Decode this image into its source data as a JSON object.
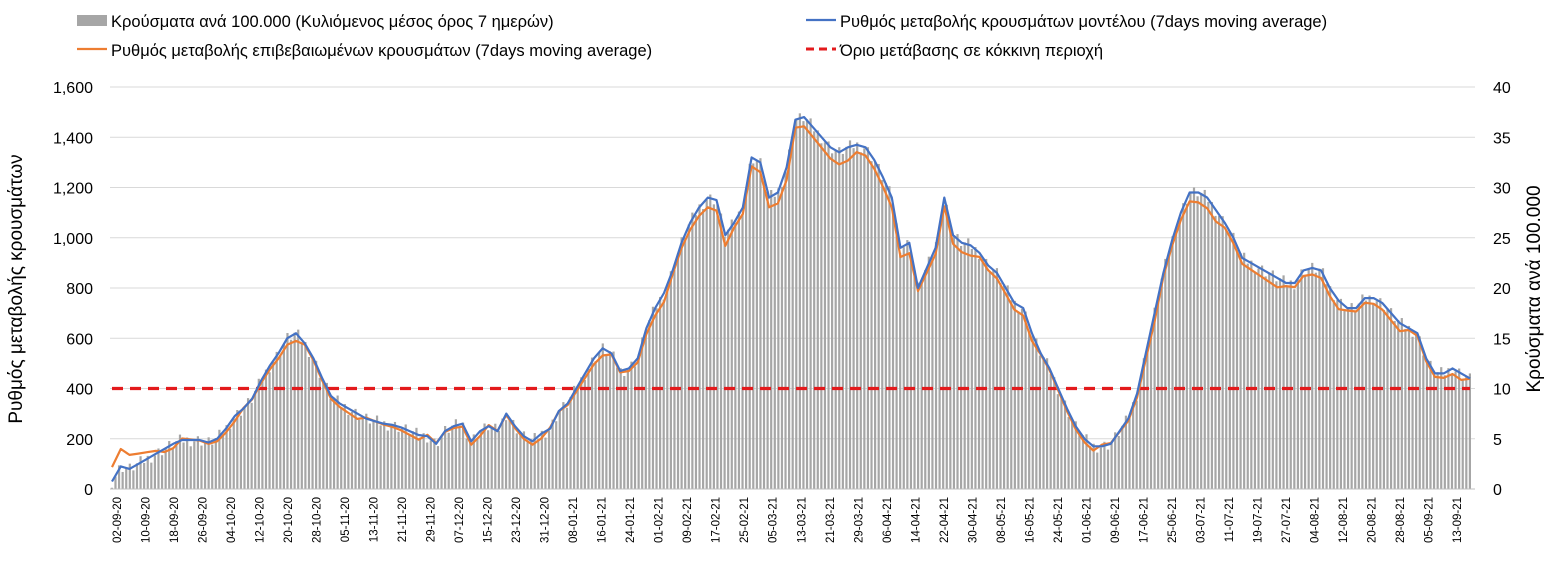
{
  "chart_data": {
    "type": "line",
    "legend": {
      "bars": "Κρούσματα ανά 100.000 (Κυλιόμενος μέσος όρος 7 ημερών)",
      "model": "Ρυθμός μεταβολής κρουσμάτων μοντέλου (7days moving average)",
      "confirmed": "Ρυθμός μεταβολής επιβεβαιωμένων κρουσμάτων (7days moving average)",
      "threshold": "Όριο μετάβασης σε κόκκινη περιοχή",
      "placement": "top"
    },
    "ylabel_left": "Ρυθμός μεταβολής κρουσμάτων",
    "ylabel_right": "Κρούσματα ανά 100.000",
    "ylim_left": [
      0,
      1600
    ],
    "ylim_right": [
      0,
      40
    ],
    "yticks_left": [
      "0",
      "200",
      "400",
      "600",
      "800",
      "1,000",
      "1,200",
      "1,400",
      "1,600"
    ],
    "yticks_right": [
      "0",
      "5",
      "10",
      "15",
      "20",
      "25",
      "30",
      "35",
      "40"
    ],
    "x_tick_labels": [
      "02-09-20",
      "10-09-20",
      "18-09-20",
      "26-09-20",
      "04-10-20",
      "12-10-20",
      "20-10-20",
      "28-10-20",
      "05-11-20",
      "13-11-20",
      "21-11-20",
      "29-11-20",
      "07-12-20",
      "15-12-20",
      "23-12-20",
      "31-12-20",
      "08-01-21",
      "16-01-21",
      "24-01-21",
      "01-02-21",
      "09-02-21",
      "17-02-21",
      "25-02-21",
      "05-03-21",
      "13-03-21",
      "21-03-21",
      "29-03-21",
      "06-04-21",
      "14-04-21",
      "22-04-21",
      "30-04-21",
      "08-05-21",
      "16-05-21",
      "24-05-21",
      "01-06-21",
      "09-06-21",
      "17-06-21",
      "25-06-21",
      "03-07-21",
      "11-07-21",
      "19-07-21",
      "27-07-21",
      "04-08-21",
      "12-08-21",
      "20-08-21",
      "28-08-21",
      "05-09-21",
      "13-09-21"
    ],
    "threshold_value": 400,
    "colors": {
      "bars": "#a6a6a6",
      "model": "#4472c4",
      "confirmed": "#ed7d31",
      "threshold": "#e31a1c",
      "grid": "#d9d9d9"
    },
    "series_model": [
      30,
      90,
      80,
      100,
      120,
      140,
      160,
      180,
      195,
      195,
      195,
      185,
      200,
      240,
      290,
      320,
      360,
      430,
      490,
      540,
      600,
      620,
      580,
      520,
      440,
      370,
      340,
      320,
      300,
      280,
      270,
      260,
      255,
      245,
      230,
      215,
      210,
      180,
      230,
      250,
      260,
      190,
      230,
      250,
      230,
      300,
      250,
      210,
      190,
      220,
      240,
      310,
      340,
      400,
      460,
      520,
      560,
      540,
      470,
      480,
      520,
      640,
      720,
      780,
      870,
      980,
      1060,
      1120,
      1160,
      1150,
      1010,
      1060,
      1120,
      1320,
      1300,
      1160,
      1180,
      1280,
      1470,
      1480,
      1440,
      1400,
      1360,
      1340,
      1360,
      1370,
      1360,
      1310,
      1240,
      1160,
      960,
      980,
      800,
      880,
      960,
      1160,
      1010,
      980,
      970,
      940,
      890,
      860,
      800,
      740,
      720,
      620,
      540,
      480,
      400,
      320,
      250,
      200,
      170,
      170,
      180,
      230,
      280,
      380,
      540,
      700,
      860,
      990,
      1100,
      1180,
      1180,
      1160,
      1110,
      1060,
      1000,
      920,
      900,
      880,
      860,
      840,
      820,
      820,
      870,
      880,
      870,
      800,
      750,
      720,
      720,
      760,
      760,
      740,
      700,
      660,
      640,
      620,
      520,
      460,
      460,
      480,
      460,
      440
    ]
  }
}
